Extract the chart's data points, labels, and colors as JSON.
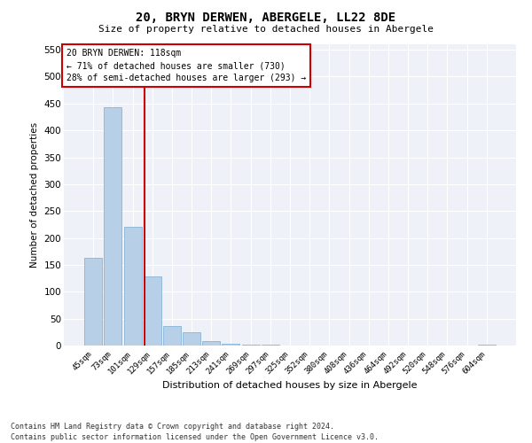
{
  "title": "20, BRYN DERWEN, ABERGELE, LL22 8DE",
  "subtitle": "Size of property relative to detached houses in Abergele",
  "xlabel": "Distribution of detached houses by size in Abergele",
  "ylabel": "Number of detached properties",
  "categories": [
    "45sqm",
    "73sqm",
    "101sqm",
    "129sqm",
    "157sqm",
    "185sqm",
    "213sqm",
    "241sqm",
    "269sqm",
    "297sqm",
    "325sqm",
    "352sqm",
    "380sqm",
    "408sqm",
    "436sqm",
    "464sqm",
    "492sqm",
    "520sqm",
    "548sqm",
    "576sqm",
    "604sqm"
  ],
  "values": [
    163,
    443,
    221,
    128,
    36,
    24,
    9,
    4,
    1,
    1,
    0,
    0,
    0,
    0,
    0,
    0,
    0,
    0,
    0,
    0,
    2
  ],
  "bar_color": "#b8cfe8",
  "bar_edge_color": "#7aaad0",
  "vline_color": "#cc0000",
  "annotation_text": "20 BRYN DERWEN: 118sqm\n← 71% of detached houses are smaller (730)\n28% of semi-detached houses are larger (293) →",
  "annotation_box_color": "#cc0000",
  "ylim": [
    0,
    560
  ],
  "yticks": [
    0,
    50,
    100,
    150,
    200,
    250,
    300,
    350,
    400,
    450,
    500,
    550
  ],
  "bg_color": "#eef2f8",
  "grid_color": "#ffffff",
  "footer": "Contains HM Land Registry data © Crown copyright and database right 2024.\nContains public sector information licensed under the Open Government Licence v3.0."
}
